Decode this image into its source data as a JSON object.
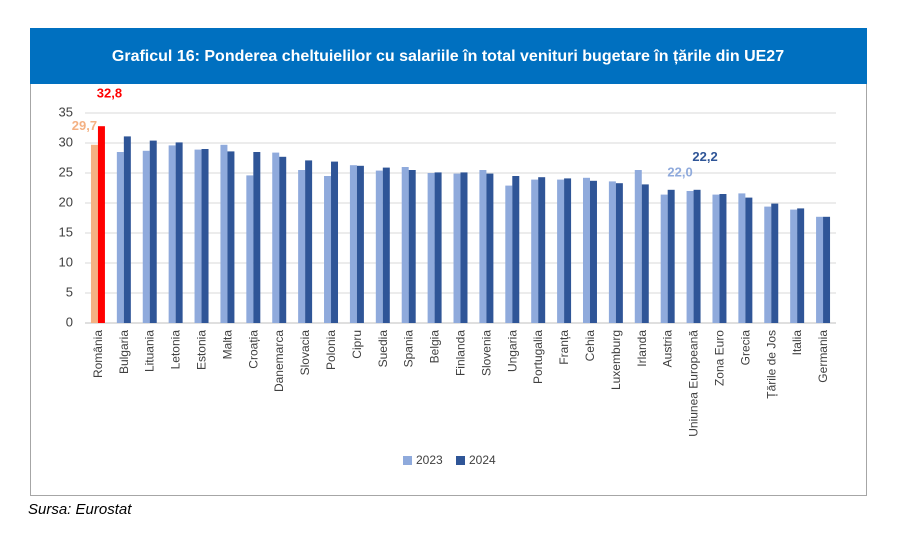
{
  "chart_data": {
    "type": "bar",
    "title": "Graficul 16: Ponderea cheltuielilor cu salariile în total venituri bugetare în țările din UE27",
    "source": "Sursa: Eurostat",
    "categories": [
      "România",
      "Bulgaria",
      "Lituania",
      "Letonia",
      "Estonia",
      "Malta",
      "Croația",
      "Danemarca",
      "Slovacia",
      "Polonia",
      "Cipru",
      "Suedia",
      "Spania",
      "Belgia",
      "Finlanda",
      "Slovenia",
      "Ungaria",
      "Portugalia",
      "Franța",
      "Cehia",
      "Luxemburg",
      "Irlanda",
      "Austria",
      "Uniunea Europeană",
      "Zona Euro",
      "Grecia",
      "Țările de Jos",
      "Italia",
      "Germania"
    ],
    "series": [
      {
        "name": "2023",
        "color": "#8faadc",
        "colors": [
          "#f4b183",
          "#8faadc",
          "#8faadc",
          "#8faadc",
          "#8faadc",
          "#8faadc",
          "#8faadc",
          "#8faadc",
          "#8faadc",
          "#8faadc",
          "#8faadc",
          "#8faadc",
          "#8faadc",
          "#8faadc",
          "#8faadc",
          "#8faadc",
          "#8faadc",
          "#8faadc",
          "#8faadc",
          "#8faadc",
          "#8faadc",
          "#8faadc",
          "#8faadc",
          "#8faadc",
          "#8faadc",
          "#8faadc",
          "#8faadc",
          "#8faadc",
          "#8faadc"
        ],
        "values": [
          29.7,
          28.5,
          28.7,
          29.6,
          28.9,
          29.7,
          24.6,
          28.4,
          25.5,
          24.5,
          26.3,
          25.4,
          26.0,
          25.0,
          24.9,
          25.5,
          22.9,
          23.9,
          23.9,
          24.2,
          23.6,
          25.5,
          21.4,
          22.0,
          21.4,
          21.6,
          19.4,
          18.9,
          17.7
        ],
        "value_labels": [
          "29,7",
          null,
          null,
          null,
          null,
          null,
          null,
          null,
          null,
          null,
          null,
          null,
          null,
          null,
          null,
          null,
          null,
          null,
          null,
          null,
          null,
          null,
          null,
          "22,0",
          null,
          null,
          null,
          null,
          null
        ]
      },
      {
        "name": "2024",
        "color": "#2f5597",
        "colors": [
          "#ff0000",
          "#2f5597",
          "#2f5597",
          "#2f5597",
          "#2f5597",
          "#2f5597",
          "#2f5597",
          "#2f5597",
          "#2f5597",
          "#2f5597",
          "#2f5597",
          "#2f5597",
          "#2f5597",
          "#2f5597",
          "#2f5597",
          "#2f5597",
          "#2f5597",
          "#2f5597",
          "#2f5597",
          "#2f5597",
          "#2f5597",
          "#2f5597",
          "#2f5597",
          "#2f5597",
          "#2f5597",
          "#2f5597",
          "#2f5597",
          "#2f5597",
          "#2f5597"
        ],
        "values": [
          32.8,
          31.1,
          30.4,
          30.1,
          29.0,
          28.6,
          28.5,
          27.7,
          27.1,
          26.9,
          26.2,
          25.9,
          25.5,
          25.1,
          25.1,
          24.9,
          24.5,
          24.3,
          24.1,
          23.7,
          23.3,
          23.1,
          22.2,
          22.2,
          21.5,
          20.9,
          19.9,
          19.1,
          17.7
        ],
        "value_labels": [
          "32,8",
          null,
          null,
          null,
          null,
          null,
          null,
          null,
          null,
          null,
          null,
          null,
          null,
          null,
          null,
          null,
          null,
          null,
          null,
          null,
          null,
          null,
          null,
          "22,2",
          null,
          null,
          null,
          null,
          null
        ]
      }
    ],
    "ylim": [
      0,
      35
    ],
    "yticks": [
      0,
      5,
      10,
      15,
      20,
      25,
      30,
      35
    ],
    "grid": true,
    "legend": "bottom"
  }
}
